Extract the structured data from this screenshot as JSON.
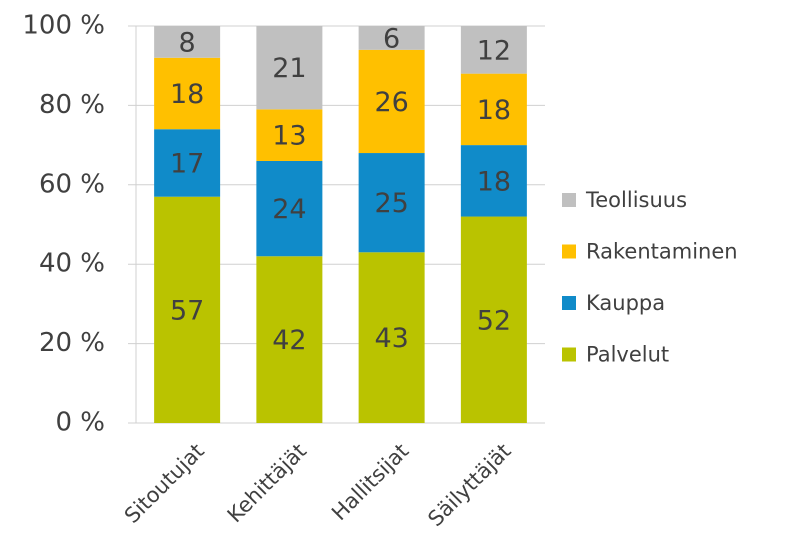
{
  "chart_data": {
    "type": "stacked_bar",
    "categories": [
      "Sitoutujat",
      "Kehittäjät",
      "Hallitsijat",
      "Säilyttäjät"
    ],
    "series": [
      {
        "name": "Palvelut",
        "color": "#bac300",
        "values": [
          57,
          42,
          43,
          52
        ]
      },
      {
        "name": "Kauppa",
        "color": "#108bc9",
        "values": [
          17,
          24,
          25,
          18
        ]
      },
      {
        "name": "Rakentaminen",
        "color": "#ffc000",
        "values": [
          18,
          13,
          26,
          18
        ]
      },
      {
        "name": "Teollisuus",
        "color": "#c0c0c0",
        "values": [
          8,
          21,
          6,
          12
        ]
      }
    ],
    "ylim": [
      0,
      100
    ],
    "yticks": [
      {
        "value": 0,
        "label": "0 %"
      },
      {
        "value": 20,
        "label": "20 %"
      },
      {
        "value": 40,
        "label": "40 %"
      },
      {
        "value": 60,
        "label": "60 %"
      },
      {
        "value": 80,
        "label": "80 %"
      },
      {
        "value": 100,
        "label": "100 %"
      }
    ],
    "grid": true,
    "legend": "right"
  }
}
